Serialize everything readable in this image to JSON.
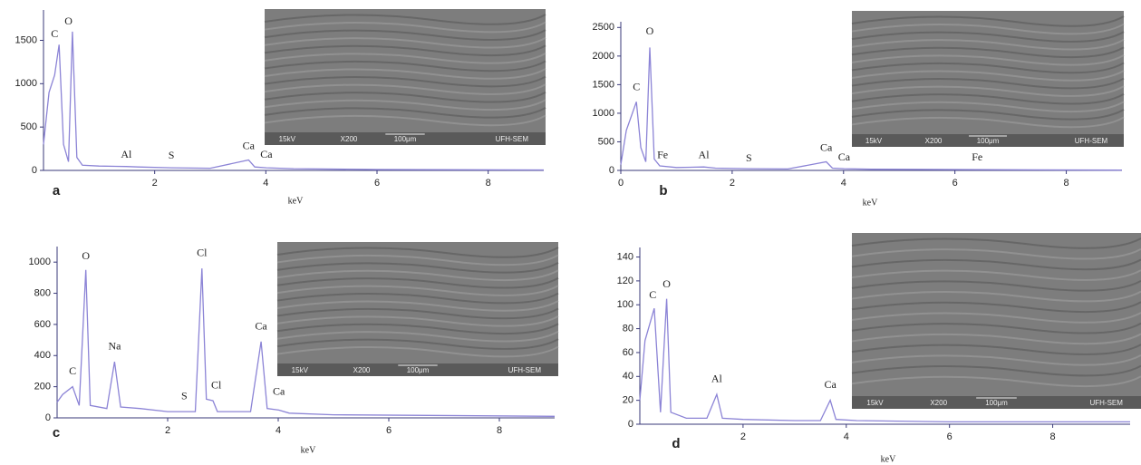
{
  "chart_data": [
    {
      "type": "line",
      "panel_label": "a",
      "x_label": "keV",
      "color": "#8c84d6",
      "x": [
        0,
        0.1,
        0.2,
        0.28,
        0.36,
        0.45,
        0.52,
        0.6,
        0.7,
        1,
        1.49,
        1.7,
        2.3,
        3,
        3.69,
        3.8,
        4.01,
        4.5,
        6,
        9
      ],
      "values": [
        300,
        900,
        1100,
        1450,
        300,
        100,
        1600,
        150,
        60,
        50,
        45,
        40,
        30,
        25,
        120,
        40,
        30,
        20,
        10,
        5
      ],
      "xlim": [
        0,
        9
      ],
      "ylim": [
        0,
        1850
      ],
      "xticks": [
        2,
        4,
        6,
        8
      ],
      "yticks": [
        0,
        500,
        1000,
        1500
      ],
      "annotations": [
        {
          "text": "C",
          "x": 0.2,
          "y": 1500
        },
        {
          "text": "O",
          "x": 0.45,
          "y": 1650
        },
        {
          "text": "Al",
          "x": 1.49,
          "y": 110
        },
        {
          "text": "S",
          "x": 2.3,
          "y": 100
        },
        {
          "text": "Ca",
          "x": 3.69,
          "y": 210
        },
        {
          "text": "Ca",
          "x": 4.01,
          "y": 110
        }
      ],
      "inset": {
        "labels": [
          "15kV",
          "X200",
          "100μm",
          "UFH-SEM"
        ]
      }
    },
    {
      "type": "line",
      "panel_label": "b",
      "x_label": "keV",
      "color": "#8c84d6",
      "x": [
        0,
        0.1,
        0.28,
        0.36,
        0.45,
        0.52,
        0.6,
        0.7,
        1,
        1.49,
        1.7,
        2.3,
        3,
        3.69,
        3.8,
        4.01,
        4.5,
        6.4,
        9
      ],
      "values": [
        100,
        700,
        1200,
        400,
        150,
        2150,
        200,
        80,
        50,
        60,
        40,
        30,
        25,
        150,
        40,
        30,
        20,
        15,
        5
      ],
      "xlim": [
        0,
        9
      ],
      "ylim": [
        0,
        2600
      ],
      "xticks": [
        0,
        2,
        4,
        6,
        8
      ],
      "yticks": [
        0,
        500,
        1000,
        1500,
        2000,
        2500
      ],
      "annotations": [
        {
          "text": "C",
          "x": 0.28,
          "y": 1350
        },
        {
          "text": "O",
          "x": 0.52,
          "y": 2330
        },
        {
          "text": "Fe",
          "x": 0.75,
          "y": 160
        },
        {
          "text": "Al",
          "x": 1.49,
          "y": 160
        },
        {
          "text": "S",
          "x": 2.3,
          "y": 110
        },
        {
          "text": "Ca",
          "x": 3.69,
          "y": 290
        },
        {
          "text": "Ca",
          "x": 4.01,
          "y": 120
        },
        {
          "text": "Fe",
          "x": 6.4,
          "y": 120
        }
      ],
      "inset": {
        "labels": [
          "15kV",
          "X200",
          "100μm",
          "UFH-SEM"
        ]
      }
    },
    {
      "type": "line",
      "panel_label": "c",
      "x_label": "keV",
      "color": "#8c84d6",
      "x": [
        0,
        0.1,
        0.28,
        0.4,
        0.52,
        0.6,
        0.9,
        1.04,
        1.15,
        1.5,
        2,
        2.3,
        2.5,
        2.62,
        2.7,
        2.82,
        2.9,
        3.2,
        3.5,
        3.69,
        3.8,
        4.01,
        4.2,
        5,
        9
      ],
      "values": [
        100,
        150,
        200,
        80,
        950,
        80,
        60,
        360,
        70,
        60,
        40,
        40,
        40,
        960,
        120,
        110,
        40,
        40,
        40,
        490,
        60,
        50,
        30,
        20,
        10
      ],
      "xlim": [
        0,
        9
      ],
      "ylim": [
        0,
        1100
      ],
      "xticks": [
        2,
        4,
        6,
        8
      ],
      "yticks": [
        0,
        200,
        400,
        600,
        800,
        1000
      ],
      "annotations": [
        {
          "text": "C",
          "x": 0.28,
          "y": 260
        },
        {
          "text": "O",
          "x": 0.52,
          "y": 1000
        },
        {
          "text": "Na",
          "x": 1.04,
          "y": 420
        },
        {
          "text": "S",
          "x": 2.3,
          "y": 100
        },
        {
          "text": "Cl",
          "x": 2.62,
          "y": 1020
        },
        {
          "text": "Cl",
          "x": 2.88,
          "y": 170
        },
        {
          "text": "Ca",
          "x": 3.69,
          "y": 550
        },
        {
          "text": "Ca",
          "x": 4.01,
          "y": 130
        }
      ],
      "inset": {
        "labels": [
          "15kV",
          "X200",
          "100μm",
          "UFH-SEM"
        ]
      }
    },
    {
      "type": "line",
      "panel_label": "d",
      "x_label": "keV",
      "color": "#8c84d6",
      "x": [
        0,
        0.1,
        0.28,
        0.4,
        0.52,
        0.6,
        0.9,
        1.3,
        1.49,
        1.6,
        2,
        3,
        3.5,
        3.69,
        3.8,
        4.2,
        6,
        9.5
      ],
      "values": [
        20,
        70,
        97,
        10,
        105,
        10,
        5,
        5,
        25,
        5,
        4,
        3,
        3,
        20,
        4,
        3,
        2,
        2
      ],
      "xlim": [
        0,
        9.5
      ],
      "ylim": [
        0,
        148
      ],
      "xticks": [
        2,
        4,
        6,
        8
      ],
      "yticks": [
        0,
        20,
        40,
        60,
        80,
        100,
        120,
        140
      ],
      "annotations": [
        {
          "text": "C",
          "x": 0.25,
          "y": 103
        },
        {
          "text": "O",
          "x": 0.52,
          "y": 112
        },
        {
          "text": "Al",
          "x": 1.49,
          "y": 33
        },
        {
          "text": "Ca",
          "x": 3.69,
          "y": 28
        }
      ],
      "inset": {
        "labels": [
          "15kV",
          "X200",
          "100μm",
          "UFH-SEM"
        ]
      }
    }
  ]
}
